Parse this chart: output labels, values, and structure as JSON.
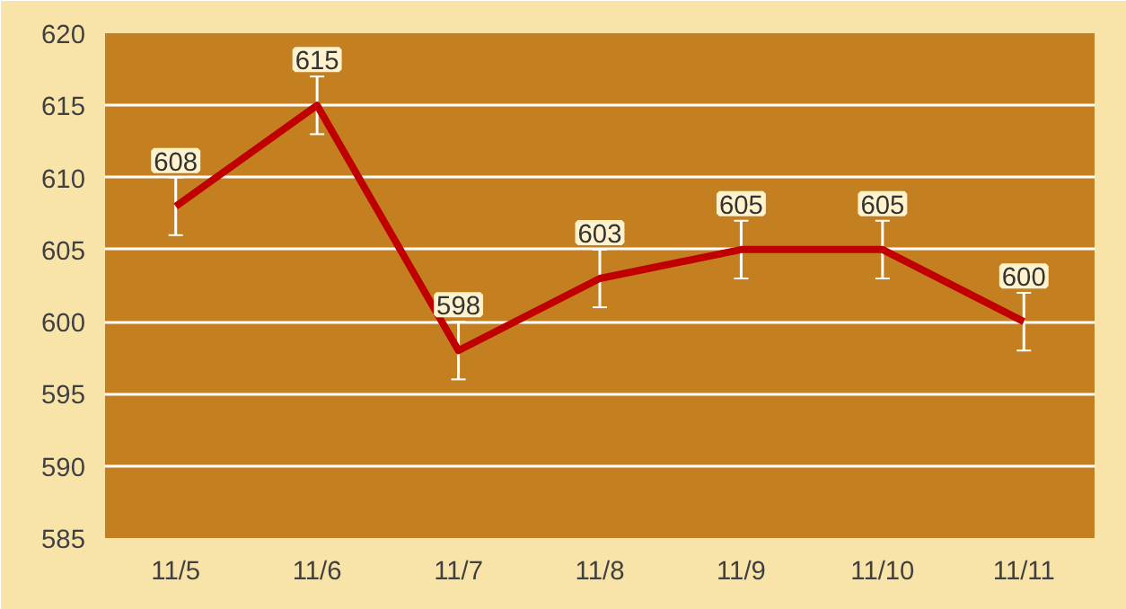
{
  "chart_data": {
    "type": "line",
    "categories": [
      "11/5",
      "11/6",
      "11/7",
      "11/8",
      "11/9",
      "11/10",
      "11/11"
    ],
    "series": [
      {
        "color": "#c00000",
        "values": [
          608,
          615,
          598,
          603,
          605,
          605,
          600
        ],
        "errors": [
          2,
          2,
          2,
          2,
          2,
          2,
          2
        ]
      }
    ],
    "ylim": [
      585,
      620
    ],
    "yticks": [
      585,
      590,
      595,
      600,
      605,
      610,
      615,
      620
    ],
    "grid": "y",
    "marker": "none",
    "line_style": "solid",
    "data_labels": true
  }
}
